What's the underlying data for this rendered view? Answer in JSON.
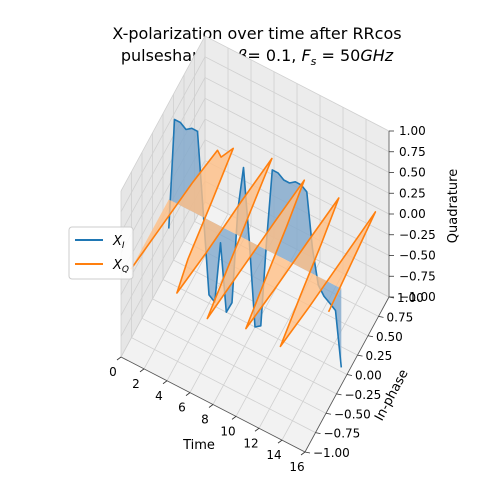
{
  "chart_data": {
    "type": "line",
    "projection": "3d",
    "title_line1": "X-polarization over time after RRcos",
    "title_line2_prefix": "pulseshaping, ",
    "title_beta_value": "= 0.1, ",
    "title_fs_value": "= 50",
    "title_fs_unit": "GHz",
    "xlabel": "Time",
    "ylabel": "In-phase",
    "zlabel": "Quadrature",
    "xlim": [
      0,
      16
    ],
    "ylim": [
      -1.0,
      1.0
    ],
    "zlim": [
      -1.0,
      1.0
    ],
    "xticks": [
      "0",
      "2",
      "4",
      "6",
      "8",
      "10",
      "12",
      "14",
      "16"
    ],
    "yticks": [
      "−1.00",
      "−0.75",
      "−0.50",
      "−0.25",
      "0.00",
      "0.25",
      "0.50",
      "0.75",
      "1.00"
    ],
    "zticks": [
      "−1.00",
      "−0.75",
      "−0.50",
      "−0.25",
      "0.00",
      "0.25",
      "0.50",
      "0.75",
      "1.00"
    ],
    "grid": true,
    "legend_position": "center-left",
    "series": [
      {
        "name": "X_I",
        "plane": "quadrature",
        "color": "#1f77b4",
        "fill": "#7fa8cc",
        "x": [
          0.5,
          1.0,
          1.5,
          2.0,
          2.5,
          3.0,
          3.5,
          4.0,
          4.5,
          5.0,
          5.5,
          6.0,
          6.5,
          7.0,
          7.5,
          8.0,
          8.5,
          9.0,
          9.5,
          10.0,
          10.5,
          11.0,
          11.5,
          12.0,
          12.5,
          13.0,
          13.5,
          14.0,
          14.5,
          15.0,
          15.5
        ],
        "values": [
          -0.35,
          1.0,
          1.0,
          0.95,
          1.0,
          1.0,
          0.05,
          -0.9,
          -0.95,
          -0.2,
          -1.0,
          -0.85,
          0.3,
          0.85,
          0.0,
          -1.0,
          -0.95,
          0.1,
          1.0,
          1.0,
          0.95,
          0.95,
          1.0,
          1.0,
          0.95,
          0.3,
          -0.1,
          -0.2,
          -0.25,
          -0.3,
          -0.95
        ]
      },
      {
        "name": "X_Q",
        "plane": "in-phase",
        "color": "#ff7f0e",
        "fill": "#ffbf86",
        "x": [
          0.5,
          1.0,
          1.5,
          2.0,
          2.5,
          3.0,
          3.5,
          4.0,
          4.5,
          5.0,
          5.5,
          6.0,
          6.5,
          7.0,
          7.5,
          8.0,
          8.5,
          9.0,
          9.5,
          10.0,
          10.5,
          11.0,
          11.5,
          12.0,
          12.5,
          13.0,
          13.5,
          14.0,
          14.5,
          15.0,
          15.5
        ],
        "values": [
          -0.9,
          -0.3,
          0.3,
          0.75,
          0.7,
          0.85,
          0.2,
          -0.5,
          -0.9,
          -0.35,
          0.35,
          0.95,
          0.3,
          -0.35,
          -1.0,
          -0.35,
          0.3,
          0.9,
          0.35,
          -0.3,
          -0.9,
          -0.35,
          0.3,
          0.9,
          0.35,
          -0.3,
          -0.9,
          -0.35,
          0.3,
          0.95,
          -0.3
        ]
      }
    ]
  },
  "legend": [
    {
      "label_main": "X",
      "label_sub": "I",
      "color": "#1f77b4"
    },
    {
      "label_main": "X",
      "label_sub": "Q",
      "color": "#ff7f0e"
    }
  ]
}
